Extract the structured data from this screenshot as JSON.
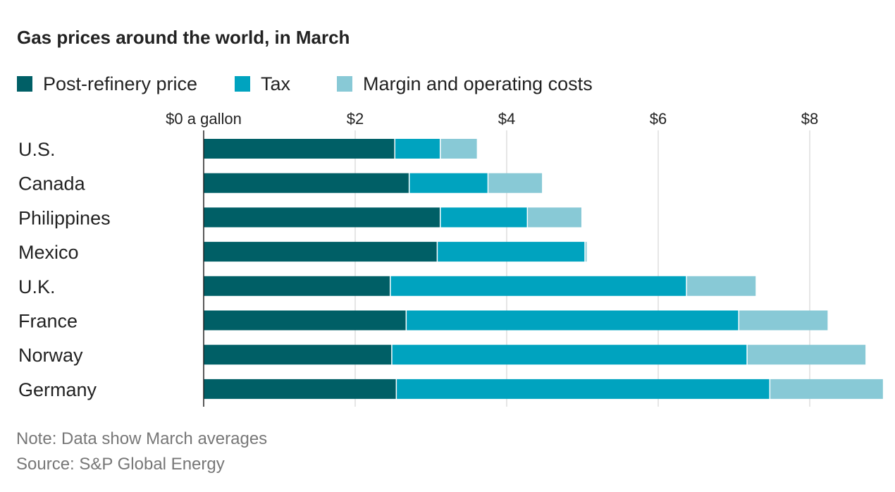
{
  "chart_data": {
    "type": "bar",
    "orientation": "horizontal",
    "stacked": true,
    "title": "Gas prices around the world, in March",
    "categories": [
      "U.S.",
      "Canada",
      "Philippines",
      "Mexico",
      "U.K.",
      "France",
      "Norway",
      "Germany"
    ],
    "series": [
      {
        "name": "Post-refinery price",
        "color": "#005f66",
        "values": [
          2.53,
          2.72,
          3.13,
          3.09,
          2.47,
          2.68,
          2.49,
          2.55
        ]
      },
      {
        "name": "Tax",
        "color": "#00a3bf",
        "values": [
          0.6,
          1.04,
          1.15,
          1.95,
          3.91,
          4.39,
          4.69,
          4.93
        ]
      },
      {
        "name": "Margin and operating costs",
        "color": "#88c9d6",
        "values": [
          0.49,
          0.72,
          0.72,
          0.03,
          0.92,
          1.18,
          1.57,
          1.5
        ]
      }
    ],
    "xticks": [
      0,
      2,
      4,
      6,
      8
    ],
    "xtick_labels": [
      "$0 a gallon",
      "$2",
      "$4",
      "$6",
      "$8"
    ],
    "xlim": [
      0,
      9
    ],
    "grid": true,
    "legend_position": "top-left",
    "note": "Note: Data show March averages",
    "source": "Source: S&P Global Energy"
  }
}
